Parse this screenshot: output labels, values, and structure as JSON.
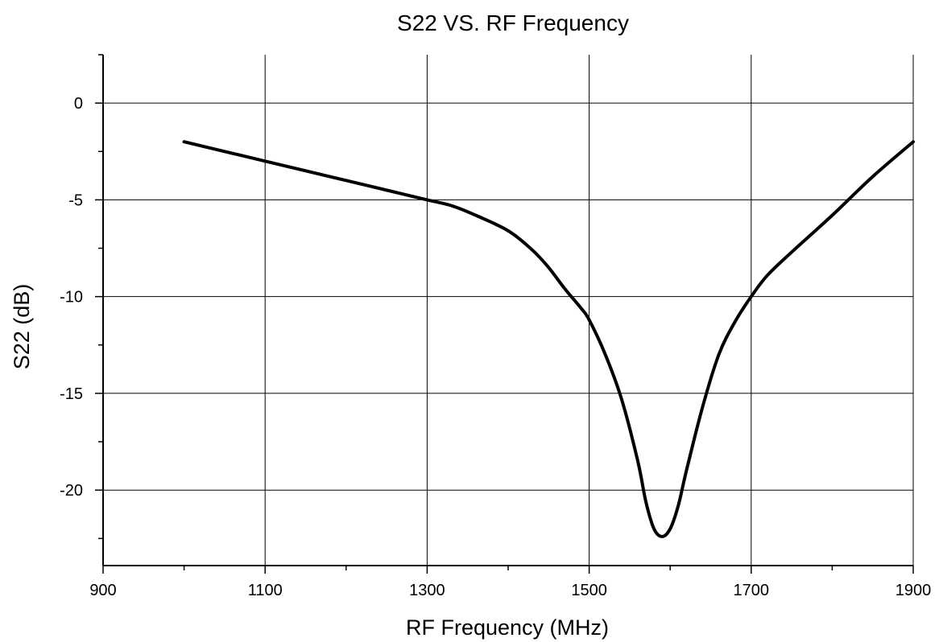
{
  "chart_data": {
    "type": "line",
    "title": "S22 VS. RF Frequency",
    "xlabel": "RF Frequency (MHz)",
    "ylabel": "S22 (dB)",
    "xlim": [
      900,
      1900
    ],
    "ylim": [
      -23.9,
      2.5
    ],
    "xticks": [
      900,
      1100,
      1300,
      1500,
      1700,
      1900
    ],
    "xtick_labels": [
      "900",
      "1100",
      "1300",
      "1500",
      "1700",
      "1900"
    ],
    "xminor_step": 100,
    "yticks": [
      0,
      -5,
      -10,
      -15,
      -20
    ],
    "ytick_labels": [
      "0",
      "-5",
      "-10",
      "-15",
      "-20"
    ],
    "yminor_step": 2.5,
    "grid": true,
    "line_color": "#000000",
    "series": [
      {
        "x": [
          1000,
          1050,
          1100,
          1150,
          1200,
          1250,
          1300,
          1330,
          1360,
          1400,
          1430,
          1450,
          1470,
          1490,
          1500,
          1520,
          1540,
          1560,
          1570,
          1580,
          1590,
          1600,
          1610,
          1620,
          1640,
          1660,
          1680,
          1700,
          1720,
          1750,
          1800,
          1850,
          1900
        ],
        "y": [
          -2.0,
          -2.5,
          -3.0,
          -3.5,
          -4.0,
          -4.5,
          -5.0,
          -5.3,
          -5.8,
          -6.6,
          -7.6,
          -8.5,
          -9.6,
          -10.6,
          -11.2,
          -13.0,
          -15.3,
          -18.5,
          -20.6,
          -22.0,
          -22.4,
          -22.0,
          -20.8,
          -19.0,
          -15.7,
          -13.0,
          -11.3,
          -10.0,
          -8.9,
          -7.7,
          -5.8,
          -3.8,
          -2.0
        ]
      }
    ]
  }
}
